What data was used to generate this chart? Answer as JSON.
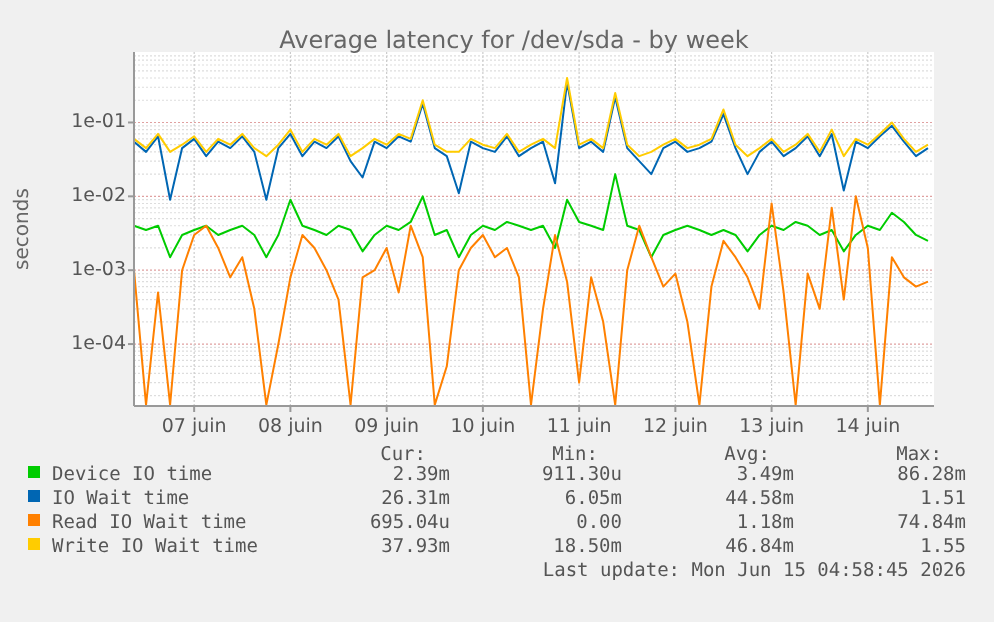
{
  "chart_data": {
    "type": "line",
    "title": "Average latency for /dev/sda - by week",
    "ylabel": "seconds",
    "log": "y",
    "grid": true,
    "legend": "bottom",
    "marker": "none",
    "line_style": "solid",
    "xlim": [
      "2026-06-06T21:00",
      "2026-06-15T04:30"
    ],
    "xticks": [
      {
        "value": "2026-06-07T12:00",
        "label": "07 juin"
      },
      {
        "value": "2026-06-08T12:00",
        "label": "08 juin"
      },
      {
        "value": "2026-06-09T12:00",
        "label": "09 juin"
      },
      {
        "value": "2026-06-10T12:00",
        "label": "10 juin"
      },
      {
        "value": "2026-06-11T12:00",
        "label": "11 juin"
      },
      {
        "value": "2026-06-12T12:00",
        "label": "12 juin"
      },
      {
        "value": "2026-06-13T12:00",
        "label": "13 juin"
      },
      {
        "value": "2026-06-14T12:00",
        "label": "14 juin"
      }
    ],
    "ylim": [
      1.45e-05,
      0.9
    ],
    "yticks": [
      {
        "value": 0.0001,
        "label": "1e-04"
      },
      {
        "value": 0.001,
        "label": "1e-03"
      },
      {
        "value": 0.01,
        "label": "1e-02"
      },
      {
        "value": 0.1,
        "label": "1e-01"
      }
    ],
    "x": [
      "2026-06-06T21:00",
      "2026-06-07T00:00",
      "2026-06-07T03:00",
      "2026-06-07T06:00",
      "2026-06-07T09:00",
      "2026-06-07T12:00",
      "2026-06-07T15:00",
      "2026-06-07T18:00",
      "2026-06-07T21:00",
      "2026-06-08T00:00",
      "2026-06-08T03:00",
      "2026-06-08T06:00",
      "2026-06-08T09:00",
      "2026-06-08T12:00",
      "2026-06-08T15:00",
      "2026-06-08T18:00",
      "2026-06-08T21:00",
      "2026-06-09T00:00",
      "2026-06-09T03:00",
      "2026-06-09T06:00",
      "2026-06-09T09:00",
      "2026-06-09T12:00",
      "2026-06-09T15:00",
      "2026-06-09T18:00",
      "2026-06-09T21:00",
      "2026-06-10T00:00",
      "2026-06-10T03:00",
      "2026-06-10T06:00",
      "2026-06-10T09:00",
      "2026-06-10T12:00",
      "2026-06-10T15:00",
      "2026-06-10T18:00",
      "2026-06-10T21:00",
      "2026-06-11T00:00",
      "2026-06-11T03:00",
      "2026-06-11T06:00",
      "2026-06-11T09:00",
      "2026-06-11T12:00",
      "2026-06-11T15:00",
      "2026-06-11T18:00",
      "2026-06-11T21:00",
      "2026-06-12T00:00",
      "2026-06-12T03:00",
      "2026-06-12T06:00",
      "2026-06-12T09:00",
      "2026-06-12T12:00",
      "2026-06-12T15:00",
      "2026-06-12T18:00",
      "2026-06-12T21:00",
      "2026-06-13T00:00",
      "2026-06-13T03:00",
      "2026-06-13T06:00",
      "2026-06-13T09:00",
      "2026-06-13T12:00",
      "2026-06-13T15:00",
      "2026-06-13T18:00",
      "2026-06-13T21:00",
      "2026-06-14T00:00",
      "2026-06-14T03:00",
      "2026-06-14T06:00",
      "2026-06-14T09:00",
      "2026-06-14T12:00",
      "2026-06-14T15:00",
      "2026-06-14T18:00",
      "2026-06-14T21:00",
      "2026-06-15T00:00",
      "2026-06-15T03:00"
    ],
    "series": [
      {
        "name": "Device IO time",
        "color": "#00cc00",
        "values": [
          0.004,
          0.0035,
          0.004,
          0.0015,
          0.003,
          0.0035,
          0.004,
          0.003,
          0.0035,
          0.004,
          0.003,
          0.0015,
          0.003,
          0.009,
          0.004,
          0.0035,
          0.003,
          0.004,
          0.0035,
          0.0018,
          0.003,
          0.004,
          0.0035,
          0.0045,
          0.01,
          0.003,
          0.0035,
          0.0015,
          0.003,
          0.004,
          0.0035,
          0.0045,
          0.004,
          0.0035,
          0.004,
          0.002,
          0.009,
          0.0045,
          0.004,
          0.0035,
          0.02,
          0.004,
          0.0035,
          0.0015,
          0.003,
          0.0035,
          0.004,
          0.0035,
          0.003,
          0.0035,
          0.003,
          0.0018,
          0.003,
          0.004,
          0.0035,
          0.0045,
          0.004,
          0.003,
          0.0035,
          0.0018,
          0.003,
          0.004,
          0.0035,
          0.006,
          0.0045,
          0.003,
          0.0025
        ]
      },
      {
        "name": "IO Wait time",
        "color": "#0066b3",
        "values": [
          0.055,
          0.04,
          0.065,
          0.009,
          0.045,
          0.06,
          0.035,
          0.055,
          0.045,
          0.065,
          0.04,
          0.009,
          0.045,
          0.07,
          0.035,
          0.055,
          0.045,
          0.065,
          0.03,
          0.018,
          0.055,
          0.045,
          0.065,
          0.055,
          0.18,
          0.045,
          0.035,
          0.011,
          0.055,
          0.045,
          0.04,
          0.065,
          0.035,
          0.045,
          0.055,
          0.015,
          0.35,
          0.045,
          0.055,
          0.04,
          0.22,
          0.045,
          0.03,
          0.02,
          0.045,
          0.055,
          0.04,
          0.045,
          0.055,
          0.13,
          0.045,
          0.02,
          0.04,
          0.055,
          0.035,
          0.045,
          0.065,
          0.035,
          0.07,
          0.012,
          0.055,
          0.045,
          0.065,
          0.09,
          0.055,
          0.035,
          0.045
        ]
      },
      {
        "name": "Read IO Wait time",
        "color": "#ff8000",
        "values": [
          0.001,
          1.5e-05,
          0.0005,
          1.5e-05,
          0.001,
          0.003,
          0.004,
          0.002,
          0.0008,
          0.0015,
          0.0003,
          1.5e-05,
          0.0001,
          0.0008,
          0.003,
          0.002,
          0.001,
          0.0004,
          1.5e-05,
          0.0008,
          0.001,
          0.002,
          0.0005,
          0.004,
          0.0015,
          1.5e-05,
          5e-05,
          0.001,
          0.002,
          0.003,
          0.0015,
          0.002,
          0.0008,
          1.5e-05,
          0.0003,
          0.003,
          0.0007,
          3e-05,
          0.0008,
          0.0002,
          1.5e-05,
          0.001,
          0.004,
          0.0015,
          0.0006,
          0.0009,
          0.0002,
          1.5e-05,
          0.0006,
          0.0025,
          0.0015,
          0.0008,
          0.0003,
          0.008,
          0.0005,
          1.5e-05,
          0.0009,
          0.0003,
          0.007,
          0.0004,
          0.01,
          0.002,
          1.5e-05,
          0.0015,
          0.0008,
          0.0006,
          0.0007
        ]
      },
      {
        "name": "Write IO Wait time",
        "color": "#ffcc00",
        "values": [
          0.06,
          0.045,
          0.07,
          0.04,
          0.05,
          0.065,
          0.04,
          0.06,
          0.05,
          0.07,
          0.045,
          0.035,
          0.05,
          0.08,
          0.04,
          0.06,
          0.05,
          0.07,
          0.035,
          0.045,
          0.06,
          0.05,
          0.07,
          0.06,
          0.2,
          0.05,
          0.04,
          0.04,
          0.06,
          0.05,
          0.045,
          0.07,
          0.04,
          0.05,
          0.06,
          0.045,
          0.4,
          0.05,
          0.06,
          0.045,
          0.25,
          0.05,
          0.035,
          0.04,
          0.05,
          0.06,
          0.045,
          0.05,
          0.06,
          0.15,
          0.05,
          0.035,
          0.045,
          0.06,
          0.04,
          0.05,
          0.07,
          0.04,
          0.08,
          0.035,
          0.06,
          0.05,
          0.07,
          0.1,
          0.06,
          0.04,
          0.05
        ]
      }
    ],
    "annotations": [
      "Cur:",
      "Min:",
      "Avg:",
      "Max:",
      "2.39m",
      "911.30u",
      "3.49m",
      "86.28m",
      "26.31m",
      "6.05m",
      "44.58m",
      "1.51",
      "695.04u",
      "0.00",
      "1.18m",
      "74.84m",
      "37.93m",
      "18.50m",
      "46.84m",
      "1.55",
      "Last update: Mon Jun 15 04:58:45 2026"
    ]
  }
}
